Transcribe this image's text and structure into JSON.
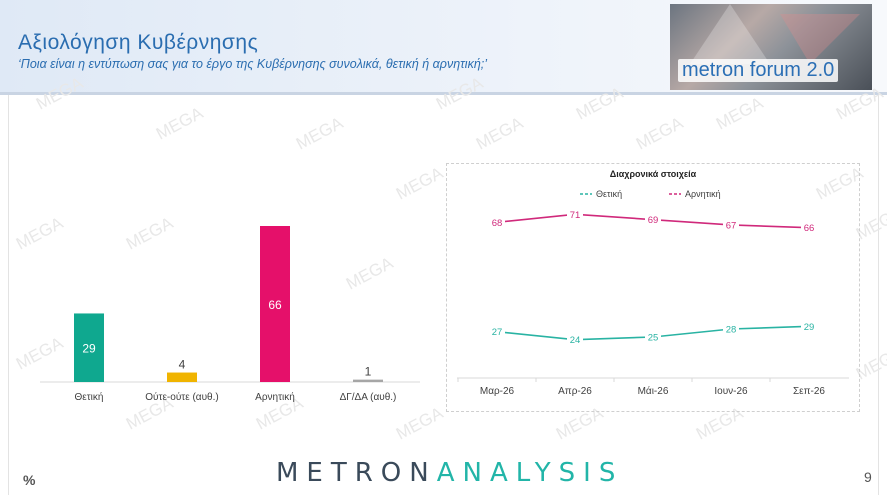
{
  "header": {
    "title": "Αξιολόγηση Κυβέρνησης",
    "subtitle": "‘Ποια είναι η εντύπωση σας για το έργο της Κυβέρνησης συνολικά, θετική ή αρνητική;’",
    "logo_text": "metron forum 2.0"
  },
  "footer": {
    "logo_left": "METRON",
    "logo_right": "ANALYSIS",
    "unit": "%",
    "page": "9"
  },
  "watermark_text": "MEGA",
  "chart_data": [
    {
      "type": "bar",
      "categories": [
        "Θετική",
        "Ούτε-ούτε (αυθ.)",
        "Αρνητική",
        "ΔΓ/ΔΑ (αυθ.)"
      ],
      "values": [
        29,
        4,
        66,
        1
      ],
      "colors": [
        "#0fa88f",
        "#f0b400",
        "#e5106a",
        "#a6a6a6"
      ],
      "ylim": [
        0,
        70
      ]
    },
    {
      "type": "line",
      "title": "Διαχρονικά στοιχεία",
      "categories": [
        "Μαρ-26",
        "Απρ-26",
        "Μάι-26",
        "Ιουν-26",
        "Σεπ-26"
      ],
      "series": [
        {
          "name": "Θετική",
          "values": [
            27,
            24,
            25,
            28,
            29
          ],
          "color": "#29b3a3"
        },
        {
          "name": "Αρνητική",
          "values": [
            68,
            71,
            69,
            67,
            66
          ],
          "color": "#d0297b"
        }
      ],
      "legend": "top",
      "ylim": [
        0,
        100
      ]
    }
  ]
}
